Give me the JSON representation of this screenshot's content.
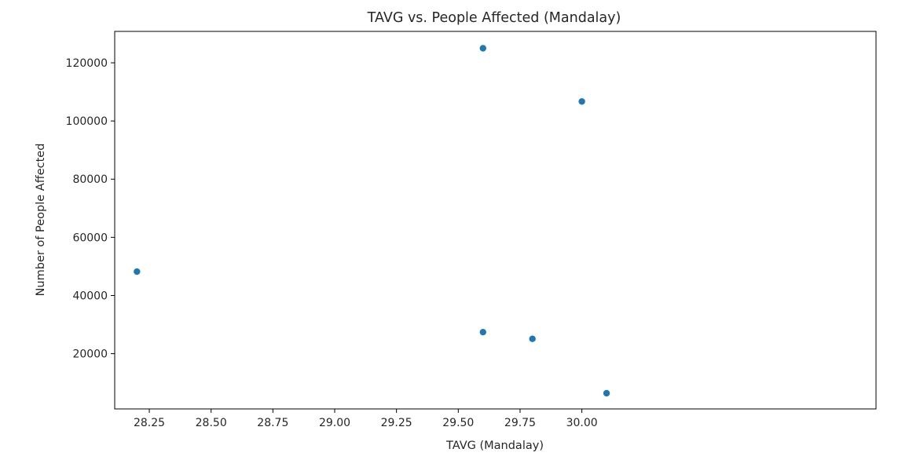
{
  "chart_data": {
    "type": "scatter",
    "title": "TAVG vs. People Affected (Mandalay)",
    "xlabel": "TAVG (Mandalay)",
    "ylabel": "Number of People Affected",
    "xlim": [
      28.11,
      31.19
    ],
    "ylim": [
      1000,
      130800
    ],
    "xticks": [
      28.25,
      28.5,
      28.75,
      29.0,
      29.25,
      29.5,
      29.75,
      30.0
    ],
    "xtick_labels": [
      "28.25",
      "28.50",
      "28.75",
      "29.00",
      "29.25",
      "29.50",
      "29.75",
      "30.00"
    ],
    "yticks": [
      20000,
      40000,
      60000,
      80000,
      100000,
      120000
    ],
    "ytick_labels": [
      "20000",
      "40000",
      "60000",
      "80000",
      "100000",
      "120000"
    ],
    "grid": false,
    "marker_color": "#1f77b4",
    "points": [
      {
        "x": 28.2,
        "y": 48200
      },
      {
        "x": 29.6,
        "y": 125000
      },
      {
        "x": 29.6,
        "y": 27400
      },
      {
        "x": 29.8,
        "y": 25100
      },
      {
        "x": 30.0,
        "y": 106700
      },
      {
        "x": 30.1,
        "y": 6400
      }
    ]
  }
}
